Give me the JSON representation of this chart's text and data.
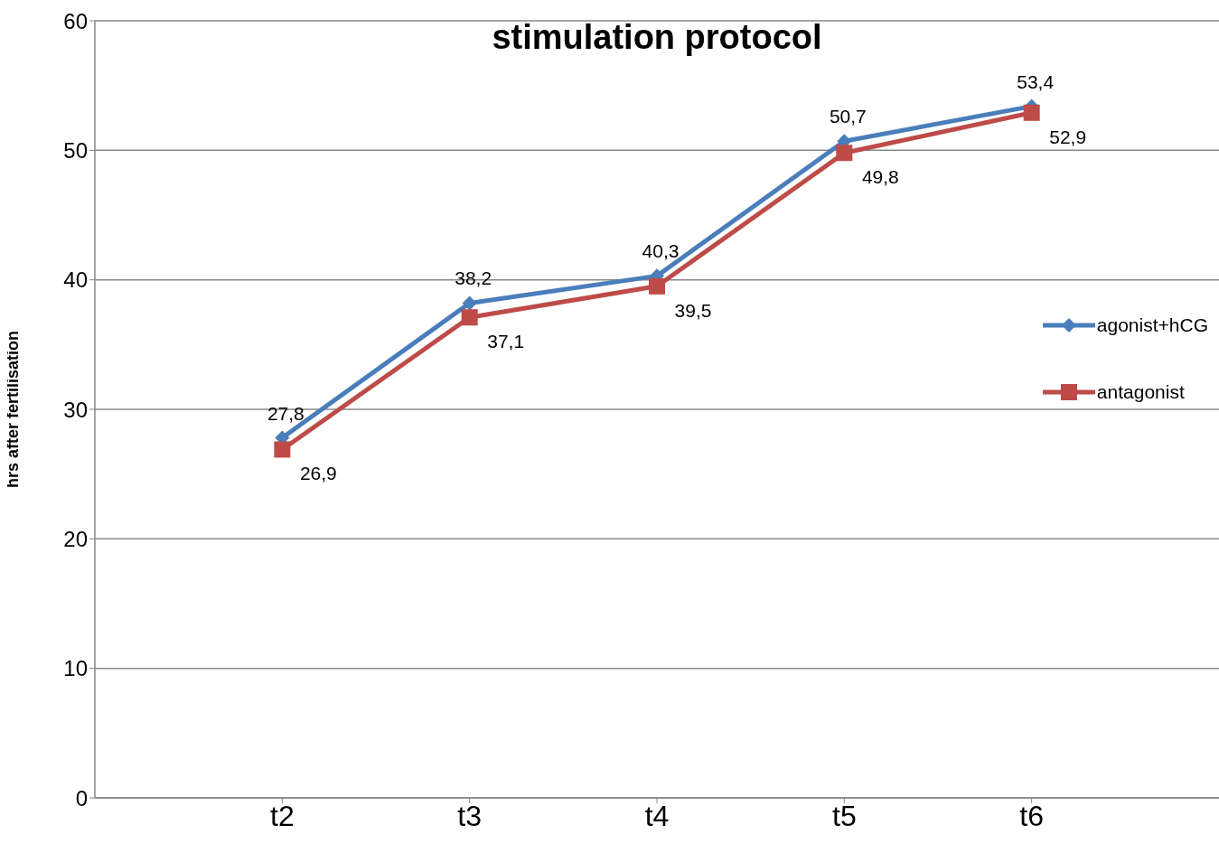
{
  "chart_data": {
    "type": "line",
    "title": "stimulation protocol",
    "ylabel": "hrs after fertilisation",
    "categories": [
      "t2",
      "t3",
      "t4",
      "t5",
      "t6"
    ],
    "series": [
      {
        "name": "agonist+hCG",
        "color": "#4a7ebb",
        "marker": "diamond",
        "values": [
          27.8,
          38.2,
          40.3,
          50.7,
          53.4
        ],
        "value_labels": [
          "27,8",
          "38,2",
          "40,3",
          "50,7",
          "53,4"
        ]
      },
      {
        "name": "antagonist",
        "color": "#be4b48",
        "marker": "square",
        "values": [
          26.9,
          37.1,
          39.5,
          49.8,
          52.9
        ],
        "value_labels": [
          "26,9",
          "37,1",
          "39,5",
          "49,8",
          "52,9"
        ]
      }
    ],
    "ylim": [
      0,
      60
    ],
    "yticks": [
      0,
      10,
      20,
      30,
      40,
      50,
      60
    ],
    "grid": "y",
    "legend": "right"
  }
}
